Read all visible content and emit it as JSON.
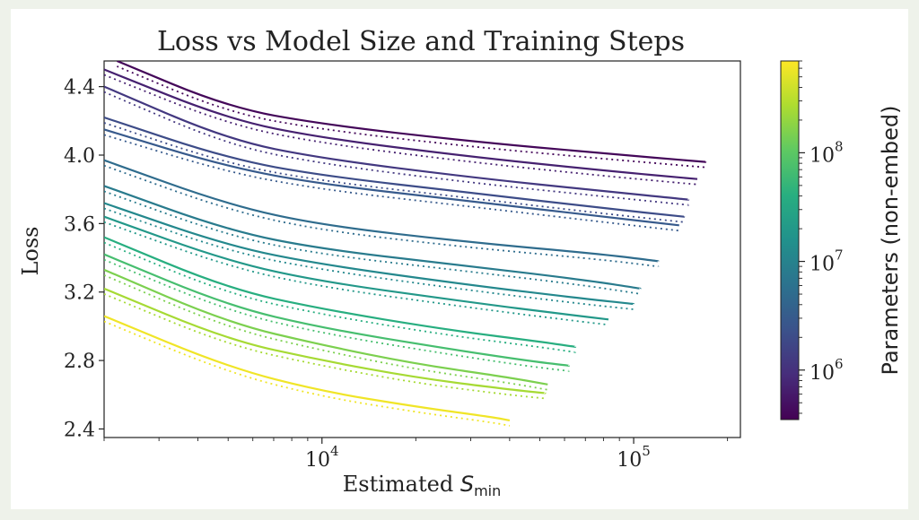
{
  "chart_data": {
    "type": "line",
    "title": "Loss vs Model Size and Training Steps",
    "xlabel_main": "Estimated ",
    "xlabel_sym": "S",
    "xlabel_sub": "min",
    "ylabel": "Loss",
    "xscale": "log",
    "xlim": [
      2000,
      220000
    ],
    "ylim": [
      2.35,
      4.55
    ],
    "xticks": [
      {
        "value": 10000,
        "base": "10",
        "exp": "4"
      },
      {
        "value": 100000,
        "base": "10",
        "exp": "5"
      }
    ],
    "yticks": [
      {
        "value": 2.4,
        "label": "2.4"
      },
      {
        "value": 2.8,
        "label": "2.8"
      },
      {
        "value": 3.2,
        "label": "3.2"
      },
      {
        "value": 3.6,
        "label": "3.6"
      },
      {
        "value": 4.0,
        "label": "4.0"
      },
      {
        "value": 4.4,
        "label": "4.4"
      }
    ],
    "colorbar": {
      "label": "Parameters (non-embed)",
      "scale": "log",
      "range": [
        350000,
        700000000
      ],
      "ticks": [
        {
          "value": 1000000,
          "base": "10",
          "exp": "6"
        },
        {
          "value": 10000000,
          "base": "10",
          "exp": "7"
        },
        {
          "value": 100000000,
          "base": "10",
          "exp": "8"
        }
      ],
      "colors": [
        "#440154",
        "#472d7b",
        "#3b528b",
        "#2c728e",
        "#21918c",
        "#28ae80",
        "#5ec962",
        "#addc30",
        "#fde725"
      ]
    },
    "series": [
      {
        "params": 400000,
        "x": [
          2200,
          5000,
          10000,
          30000,
          80000,
          170000
        ],
        "y": [
          4.55,
          4.28,
          4.18,
          4.08,
          4.01,
          3.96
        ]
      },
      {
        "params": 700000,
        "x": [
          2000,
          5000,
          10000,
          30000,
          80000,
          160000
        ],
        "y": [
          4.5,
          4.21,
          4.1,
          3.99,
          3.91,
          3.86
        ]
      },
      {
        "params": 1200000,
        "x": [
          2000,
          5000,
          10000,
          30000,
          80000,
          150000
        ],
        "y": [
          4.4,
          4.09,
          3.98,
          3.87,
          3.79,
          3.74
        ]
      },
      {
        "params": 2000000,
        "x": [
          2000,
          5000,
          10000,
          30000,
          80000,
          145000
        ],
        "y": [
          4.22,
          3.98,
          3.88,
          3.78,
          3.69,
          3.64
        ]
      },
      {
        "params": 3000000,
        "x": [
          2000,
          5000,
          10000,
          30000,
          80000,
          140000
        ],
        "y": [
          4.15,
          3.93,
          3.83,
          3.73,
          3.64,
          3.59
        ]
      },
      {
        "params": 5000000,
        "x": [
          2000,
          5000,
          10000,
          30000,
          80000,
          120000
        ],
        "y": [
          3.97,
          3.71,
          3.59,
          3.49,
          3.42,
          3.38
        ]
      },
      {
        "params": 8000000,
        "x": [
          2000,
          5000,
          10000,
          30000,
          70000,
          105000
        ],
        "y": [
          3.82,
          3.56,
          3.45,
          3.35,
          3.27,
          3.22
        ]
      },
      {
        "params": 12000000,
        "x": [
          2000,
          5000,
          10000,
          30000,
          70000,
          100000
        ],
        "y": [
          3.72,
          3.47,
          3.36,
          3.24,
          3.16,
          3.13
        ]
      },
      {
        "params": 20000000,
        "x": [
          2000,
          5000,
          10000,
          30000,
          60000,
          83000
        ],
        "y": [
          3.64,
          3.38,
          3.26,
          3.14,
          3.07,
          3.04
        ]
      },
      {
        "params": 40000000,
        "x": [
          2000,
          5000,
          10000,
          25000,
          50000,
          65000
        ],
        "y": [
          3.52,
          3.22,
          3.1,
          2.98,
          2.91,
          2.88
        ]
      },
      {
        "params": 70000000,
        "x": [
          2000,
          5000,
          10000,
          25000,
          45000,
          62000
        ],
        "y": [
          3.42,
          3.12,
          2.99,
          2.87,
          2.8,
          2.77
        ]
      },
      {
        "params": 150000000,
        "x": [
          2000,
          5000,
          10000,
          20000,
          40000,
          53000
        ],
        "y": [
          3.33,
          3.02,
          2.89,
          2.78,
          2.7,
          2.66
        ]
      },
      {
        "params": 250000000,
        "x": [
          2000,
          5000,
          10000,
          20000,
          40000,
          52000
        ],
        "y": [
          3.22,
          2.92,
          2.8,
          2.7,
          2.63,
          2.61
        ]
      },
      {
        "params": 600000000,
        "x": [
          2000,
          5000,
          10000,
          20000,
          35000,
          40000
        ],
        "y": [
          3.06,
          2.76,
          2.62,
          2.53,
          2.47,
          2.45
        ]
      }
    ]
  }
}
